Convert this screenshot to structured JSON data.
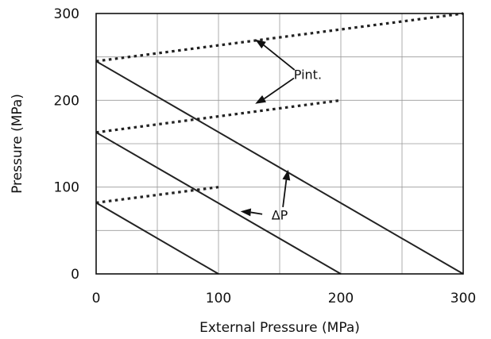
{
  "chart_data": {
    "type": "line",
    "title": "",
    "xlabel": "External Pressure (MPa)",
    "ylabel": "Pressure (MPa)",
    "xlim": [
      0,
      300
    ],
    "ylim": [
      0,
      300
    ],
    "xticks": [
      0,
      100,
      200,
      300
    ],
    "yticks": [
      0,
      100,
      200,
      300
    ],
    "xtick_labels": [
      "0",
      "100",
      "200",
      "300"
    ],
    "ytick_labels": [
      "0",
      "100",
      "200",
      "300"
    ],
    "grid": true,
    "grid_step": 50,
    "colors": {
      "line": "#222222",
      "grid": "#9a9a9a",
      "frame": "#111111"
    },
    "series": [
      {
        "group": "Pint.",
        "style": "dotted",
        "x": [
          0,
          100
        ],
        "y": [
          82,
          100
        ]
      },
      {
        "group": "Pint.",
        "style": "dotted",
        "x": [
          0,
          200
        ],
        "y": [
          163,
          200
        ]
      },
      {
        "group": "Pint.",
        "style": "dotted",
        "x": [
          0,
          300
        ],
        "y": [
          245,
          300
        ]
      },
      {
        "group": "ΔP",
        "style": "solid",
        "x": [
          0,
          100
        ],
        "y": [
          82,
          0
        ]
      },
      {
        "group": "ΔP",
        "style": "solid",
        "x": [
          0,
          200
        ],
        "y": [
          163,
          0
        ]
      },
      {
        "group": "ΔP",
        "style": "solid",
        "x": [
          0,
          300
        ],
        "y": [
          245,
          0
        ]
      }
    ],
    "annotations": [
      {
        "text": "Pint.",
        "x": 173,
        "y": 230,
        "arrows": [
          [
            130,
            270
          ],
          [
            130,
            196
          ]
        ]
      },
      {
        "text": "ΔP",
        "x": 150,
        "y": 68,
        "arrows": [
          [
            118,
            72
          ],
          [
            157,
            120
          ]
        ]
      }
    ]
  }
}
